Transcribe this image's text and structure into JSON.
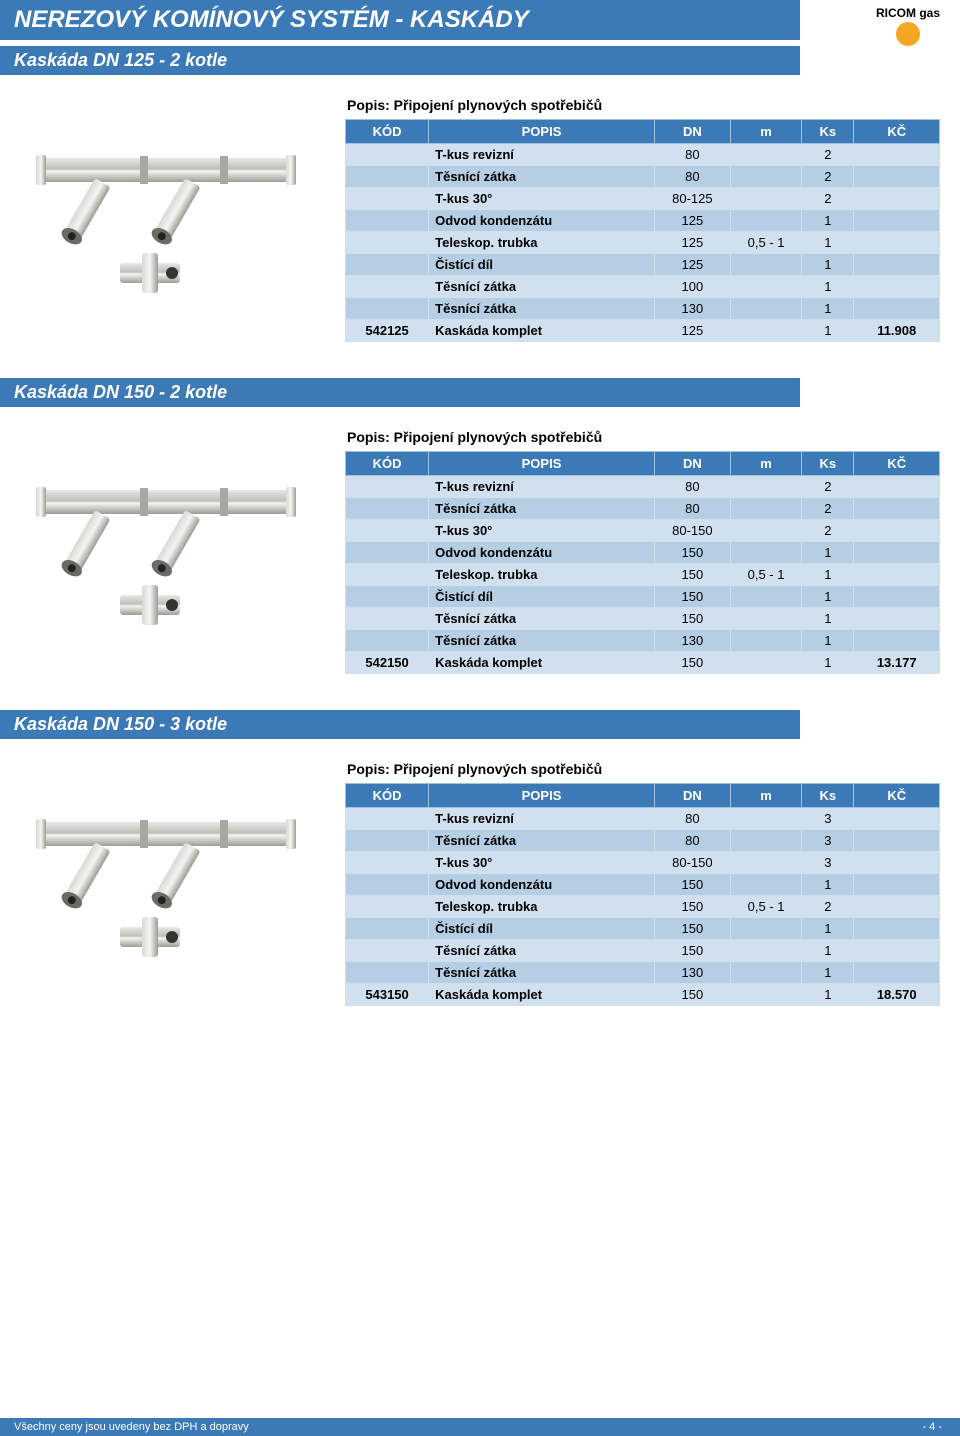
{
  "page_title": "NEREZOVÝ KOMÍNOVÝ SYSTÉM - KASKÁDY",
  "logo_text": "RICOM gas",
  "logo_color": "#f5a623",
  "table_headers": {
    "kod": "KÓD",
    "popis": "POPIS",
    "dn": "DN",
    "m": "m",
    "ks": "Ks",
    "kc": "KČ"
  },
  "sections": [
    {
      "title": "Kaskáda DN 125 - 2 kotle",
      "caption": "Popis: Připojení plynových spotřebičů",
      "rows": [
        {
          "kod": "",
          "popis": "T-kus revizní",
          "dn": "80",
          "m": "",
          "ks": "2",
          "kc": ""
        },
        {
          "kod": "",
          "popis": "Těsnící zátka",
          "dn": "80",
          "m": "",
          "ks": "2",
          "kc": ""
        },
        {
          "kod": "",
          "popis": "T-kus 30°",
          "dn": "80-125",
          "m": "",
          "ks": "2",
          "kc": ""
        },
        {
          "kod": "",
          "popis": "Odvod kondenzátu",
          "dn": "125",
          "m": "",
          "ks": "1",
          "kc": ""
        },
        {
          "kod": "",
          "popis": "Teleskop. trubka",
          "dn": "125",
          "m": "0,5 - 1",
          "ks": "1",
          "kc": ""
        },
        {
          "kod": "",
          "popis": "Čistící díl",
          "dn": "125",
          "m": "",
          "ks": "1",
          "kc": ""
        },
        {
          "kod": "",
          "popis": "Těsnící zátka",
          "dn": "100",
          "m": "",
          "ks": "1",
          "kc": ""
        },
        {
          "kod": "",
          "popis": "Těsnící zátka",
          "dn": "130",
          "m": "",
          "ks": "1",
          "kc": ""
        },
        {
          "kod": "542125",
          "popis": "Kaskáda komplet",
          "dn": "125",
          "m": "",
          "ks": "1",
          "kc": "11.908"
        }
      ]
    },
    {
      "title": "Kaskáda DN 150 - 2 kotle",
      "caption": "Popis: Připojení plynových spotřebičů",
      "rows": [
        {
          "kod": "",
          "popis": "T-kus revizní",
          "dn": "80",
          "m": "",
          "ks": "2",
          "kc": ""
        },
        {
          "kod": "",
          "popis": "Těsnící zátka",
          "dn": "80",
          "m": "",
          "ks": "2",
          "kc": ""
        },
        {
          "kod": "",
          "popis": "T-kus 30°",
          "dn": "80-150",
          "m": "",
          "ks": "2",
          "kc": ""
        },
        {
          "kod": "",
          "popis": "Odvod kondenzátu",
          "dn": "150",
          "m": "",
          "ks": "1",
          "kc": ""
        },
        {
          "kod": "",
          "popis": "Teleskop. trubka",
          "dn": "150",
          "m": "0,5 - 1",
          "ks": "1",
          "kc": ""
        },
        {
          "kod": "",
          "popis": "Čistící díl",
          "dn": "150",
          "m": "",
          "ks": "1",
          "kc": ""
        },
        {
          "kod": "",
          "popis": "Těsnící zátka",
          "dn": "150",
          "m": "",
          "ks": "1",
          "kc": ""
        },
        {
          "kod": "",
          "popis": "Těsnící zátka",
          "dn": "130",
          "m": "",
          "ks": "1",
          "kc": ""
        },
        {
          "kod": "542150",
          "popis": "Kaskáda komplet",
          "dn": "150",
          "m": "",
          "ks": "1",
          "kc": "13.177"
        }
      ]
    },
    {
      "title": "Kaskáda DN 150 - 3 kotle",
      "caption": "Popis: Připojení plynových spotřebičů",
      "rows": [
        {
          "kod": "",
          "popis": "T-kus revizní",
          "dn": "80",
          "m": "",
          "ks": "3",
          "kc": ""
        },
        {
          "kod": "",
          "popis": "Těsnící zátka",
          "dn": "80",
          "m": "",
          "ks": "3",
          "kc": ""
        },
        {
          "kod": "",
          "popis": "T-kus 30°",
          "dn": "80-150",
          "m": "",
          "ks": "3",
          "kc": ""
        },
        {
          "kod": "",
          "popis": "Odvod kondenzátu",
          "dn": "150",
          "m": "",
          "ks": "1",
          "kc": ""
        },
        {
          "kod": "",
          "popis": "Teleskop. trubka",
          "dn": "150",
          "m": "0,5 - 1",
          "ks": "2",
          "kc": ""
        },
        {
          "kod": "",
          "popis": "Čistící díl",
          "dn": "150",
          "m": "",
          "ks": "1",
          "kc": ""
        },
        {
          "kod": "",
          "popis": "Těsnící zátka",
          "dn": "150",
          "m": "",
          "ks": "1",
          "kc": ""
        },
        {
          "kod": "",
          "popis": "Těsnící zátka",
          "dn": "130",
          "m": "",
          "ks": "1",
          "kc": ""
        },
        {
          "kod": "543150",
          "popis": "Kaskáda komplet",
          "dn": "150",
          "m": "",
          "ks": "1",
          "kc": "18.570"
        }
      ]
    }
  ],
  "footer_left": "Všechny ceny jsou uvedeny bez DPH a dopravy",
  "footer_right": "- 4 -",
  "colors": {
    "header_bg": "#3b79b7",
    "row_even": "#d0e0ee",
    "row_odd": "#b6cee4",
    "border": "#cfe0ef"
  }
}
